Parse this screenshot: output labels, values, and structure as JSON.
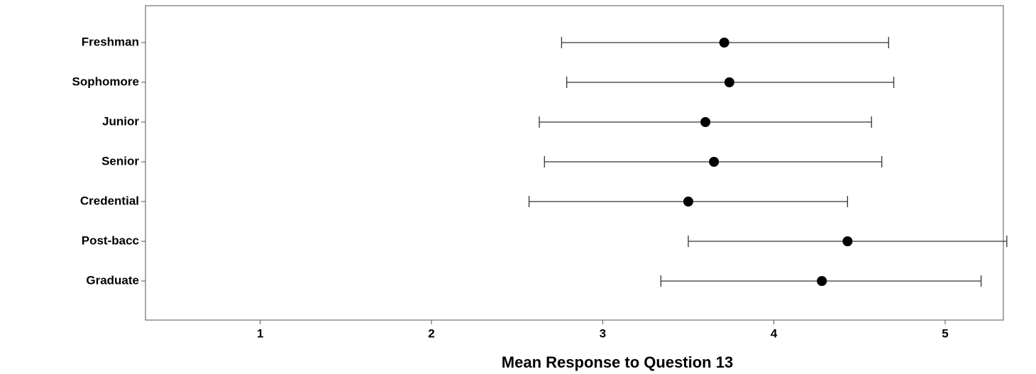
{
  "chart_data": {
    "type": "errorbar",
    "x_label": "Mean Response to Question 13",
    "categories": [
      "Freshman",
      "Sophomore",
      "Junior",
      "Senior",
      "Credential",
      "Post-bacc",
      "Graduate"
    ],
    "series": [
      {
        "color": "#000000",
        "values": [
          3.71,
          3.74,
          3.6,
          3.65,
          3.5,
          4.43,
          4.28
        ],
        "lower": [
          2.76,
          2.79,
          2.63,
          2.66,
          2.57,
          3.5,
          3.34
        ],
        "upper": [
          4.67,
          4.7,
          4.57,
          4.63,
          4.43,
          5.36,
          5.21
        ]
      }
    ],
    "xlim": [
      0.33,
      5.34
    ],
    "xticks": [
      1,
      2,
      3,
      4,
      5
    ]
  }
}
